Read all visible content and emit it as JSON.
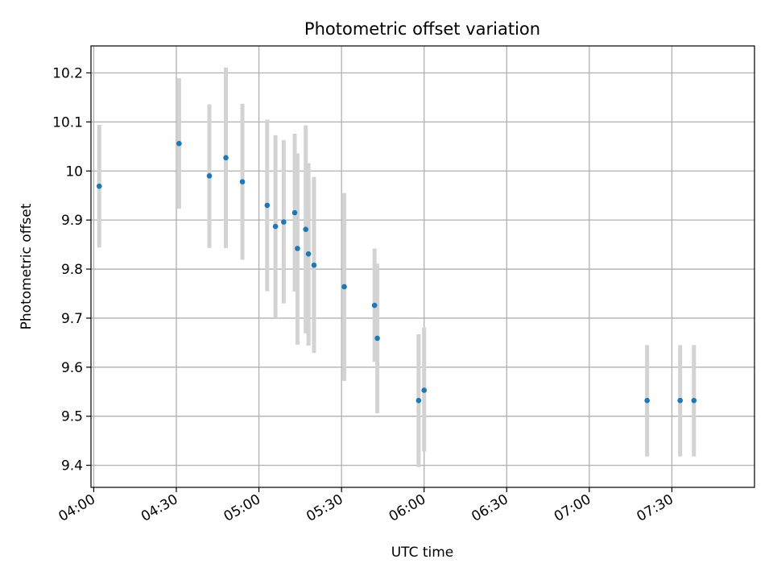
{
  "chart_data": {
    "type": "scatter",
    "title": "Photometric offset variation",
    "xlabel": "UTC time",
    "ylabel": "Photometric offset",
    "x_unit": "UTC clock time (HH:MM)",
    "xlim": [
      "03:59",
      "08:00"
    ],
    "ylim": [
      9.355,
      10.255
    ],
    "x_ticks": [
      "04:00",
      "04:30",
      "05:00",
      "05:30",
      "06:00",
      "06:30",
      "07:00",
      "07:30"
    ],
    "y_ticks": [
      9.4,
      9.5,
      9.6,
      9.7,
      9.8,
      9.9,
      10.0,
      10.1,
      10.2
    ],
    "grid": true,
    "colors": {
      "point": "#1f77b4",
      "errorbar": "#d3d3d3",
      "grid": "#b0b0b0"
    },
    "series": [
      {
        "points": [
          {
            "x": "04:02",
            "y": 9.969,
            "yerr_low": 9.844,
            "yerr_high": 10.094
          },
          {
            "x": "04:31",
            "y": 10.056,
            "yerr_low": 9.923,
            "yerr_high": 10.189
          },
          {
            "x": "04:42",
            "y": 9.99,
            "yerr_low": 9.843,
            "yerr_high": 10.136
          },
          {
            "x": "04:48",
            "y": 10.027,
            "yerr_low": 9.843,
            "yerr_high": 10.211
          },
          {
            "x": "04:54",
            "y": 9.978,
            "yerr_low": 9.819,
            "yerr_high": 10.137
          },
          {
            "x": "05:03",
            "y": 9.93,
            "yerr_low": 9.755,
            "yerr_high": 10.105
          },
          {
            "x": "05:06",
            "y": 9.887,
            "yerr_low": 9.7,
            "yerr_high": 10.073
          },
          {
            "x": "05:09",
            "y": 9.896,
            "yerr_low": 9.73,
            "yerr_high": 10.063
          },
          {
            "x": "05:13",
            "y": 9.915,
            "yerr_low": 9.754,
            "yerr_high": 10.076
          },
          {
            "x": "05:14",
            "y": 9.842,
            "yerr_low": 9.646,
            "yerr_high": 10.036
          },
          {
            "x": "05:17",
            "y": 9.881,
            "yerr_low": 9.669,
            "yerr_high": 10.093
          },
          {
            "x": "05:18",
            "y": 9.831,
            "yerr_low": 9.644,
            "yerr_high": 10.016
          },
          {
            "x": "05:20",
            "y": 9.808,
            "yerr_low": 9.629,
            "yerr_high": 9.988
          },
          {
            "x": "05:31",
            "y": 9.764,
            "yerr_low": 9.572,
            "yerr_high": 9.955
          },
          {
            "x": "05:42",
            "y": 9.726,
            "yerr_low": 9.611,
            "yerr_high": 9.842
          },
          {
            "x": "05:43",
            "y": 9.659,
            "yerr_low": 9.506,
            "yerr_high": 9.811
          },
          {
            "x": "05:58",
            "y": 9.532,
            "yerr_low": 9.396,
            "yerr_high": 9.667
          },
          {
            "x": "06:00",
            "y": 9.553,
            "yerr_low": 9.428,
            "yerr_high": 9.681
          },
          {
            "x": "07:21",
            "y": 9.532,
            "yerr_low": 9.418,
            "yerr_high": 9.645
          },
          {
            "x": "07:33",
            "y": 9.532,
            "yerr_low": 9.418,
            "yerr_high": 9.645
          },
          {
            "x": "07:38",
            "y": 9.532,
            "yerr_low": 9.418,
            "yerr_high": 9.645
          }
        ]
      }
    ]
  }
}
